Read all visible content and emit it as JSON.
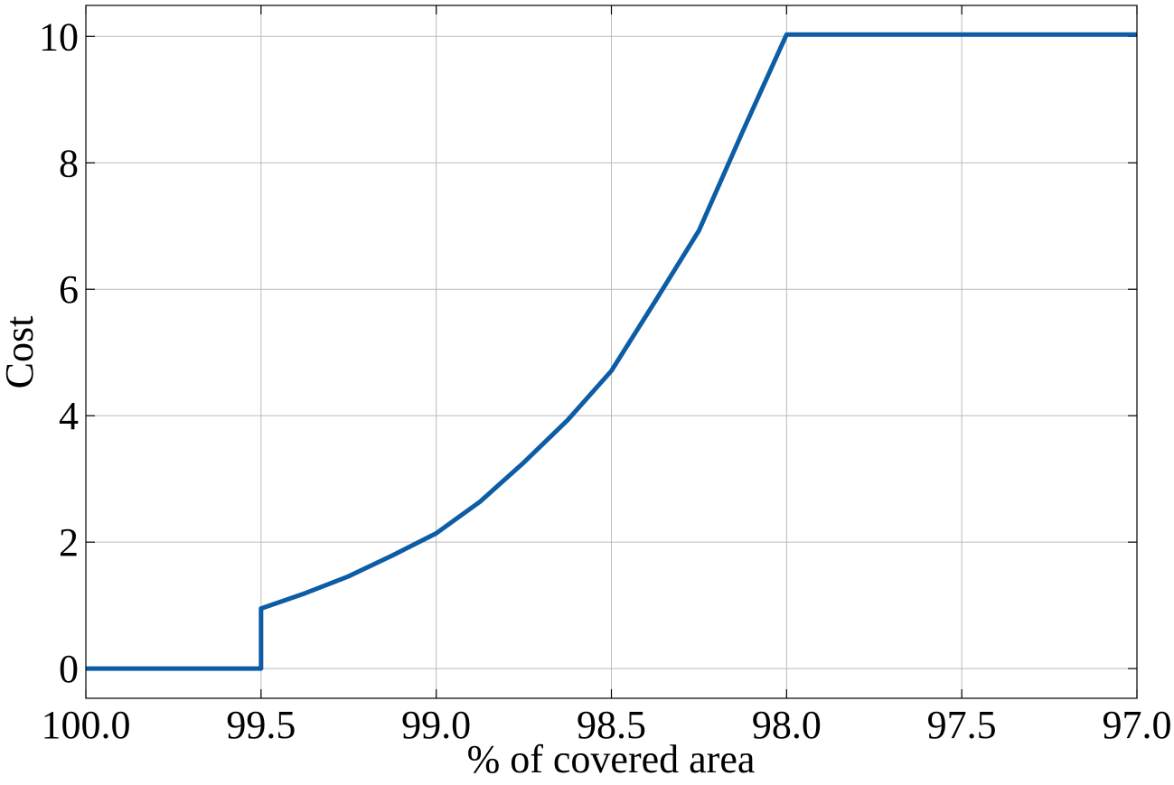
{
  "chart_data": {
    "type": "line",
    "x_label": "% of covered area",
    "y_label": "Cost",
    "xlim": [
      100,
      97
    ],
    "ylim": [
      -0.47,
      10.49
    ],
    "xticks": [
      {
        "value": 100,
        "label": "100.0"
      },
      {
        "value": 99.5,
        "label": "99.5"
      },
      {
        "value": 99,
        "label": "99.0"
      },
      {
        "value": 98.5,
        "label": "98.5"
      },
      {
        "value": 98,
        "label": "98.0"
      },
      {
        "value": 97.5,
        "label": "97.5"
      },
      {
        "value": 97,
        "label": "97.0"
      }
    ],
    "yticks": [
      0,
      2,
      4,
      6,
      8,
      10
    ],
    "grid": true,
    "series": [
      {
        "color": "#0c5da5",
        "x": [
          100,
          99.5,
          99.5,
          99.375,
          99.25,
          99.125,
          99.0,
          98.875,
          98.75,
          98.625,
          98.5,
          98.375,
          98.25,
          98.125,
          98.0,
          97.0
        ],
        "values": [
          0,
          0,
          0.95,
          1.19,
          1.46,
          1.79,
          2.14,
          2.64,
          3.26,
          3.93,
          4.71,
          5.81,
          6.93,
          8.5,
          10.03,
          10.03
        ]
      }
    ]
  }
}
